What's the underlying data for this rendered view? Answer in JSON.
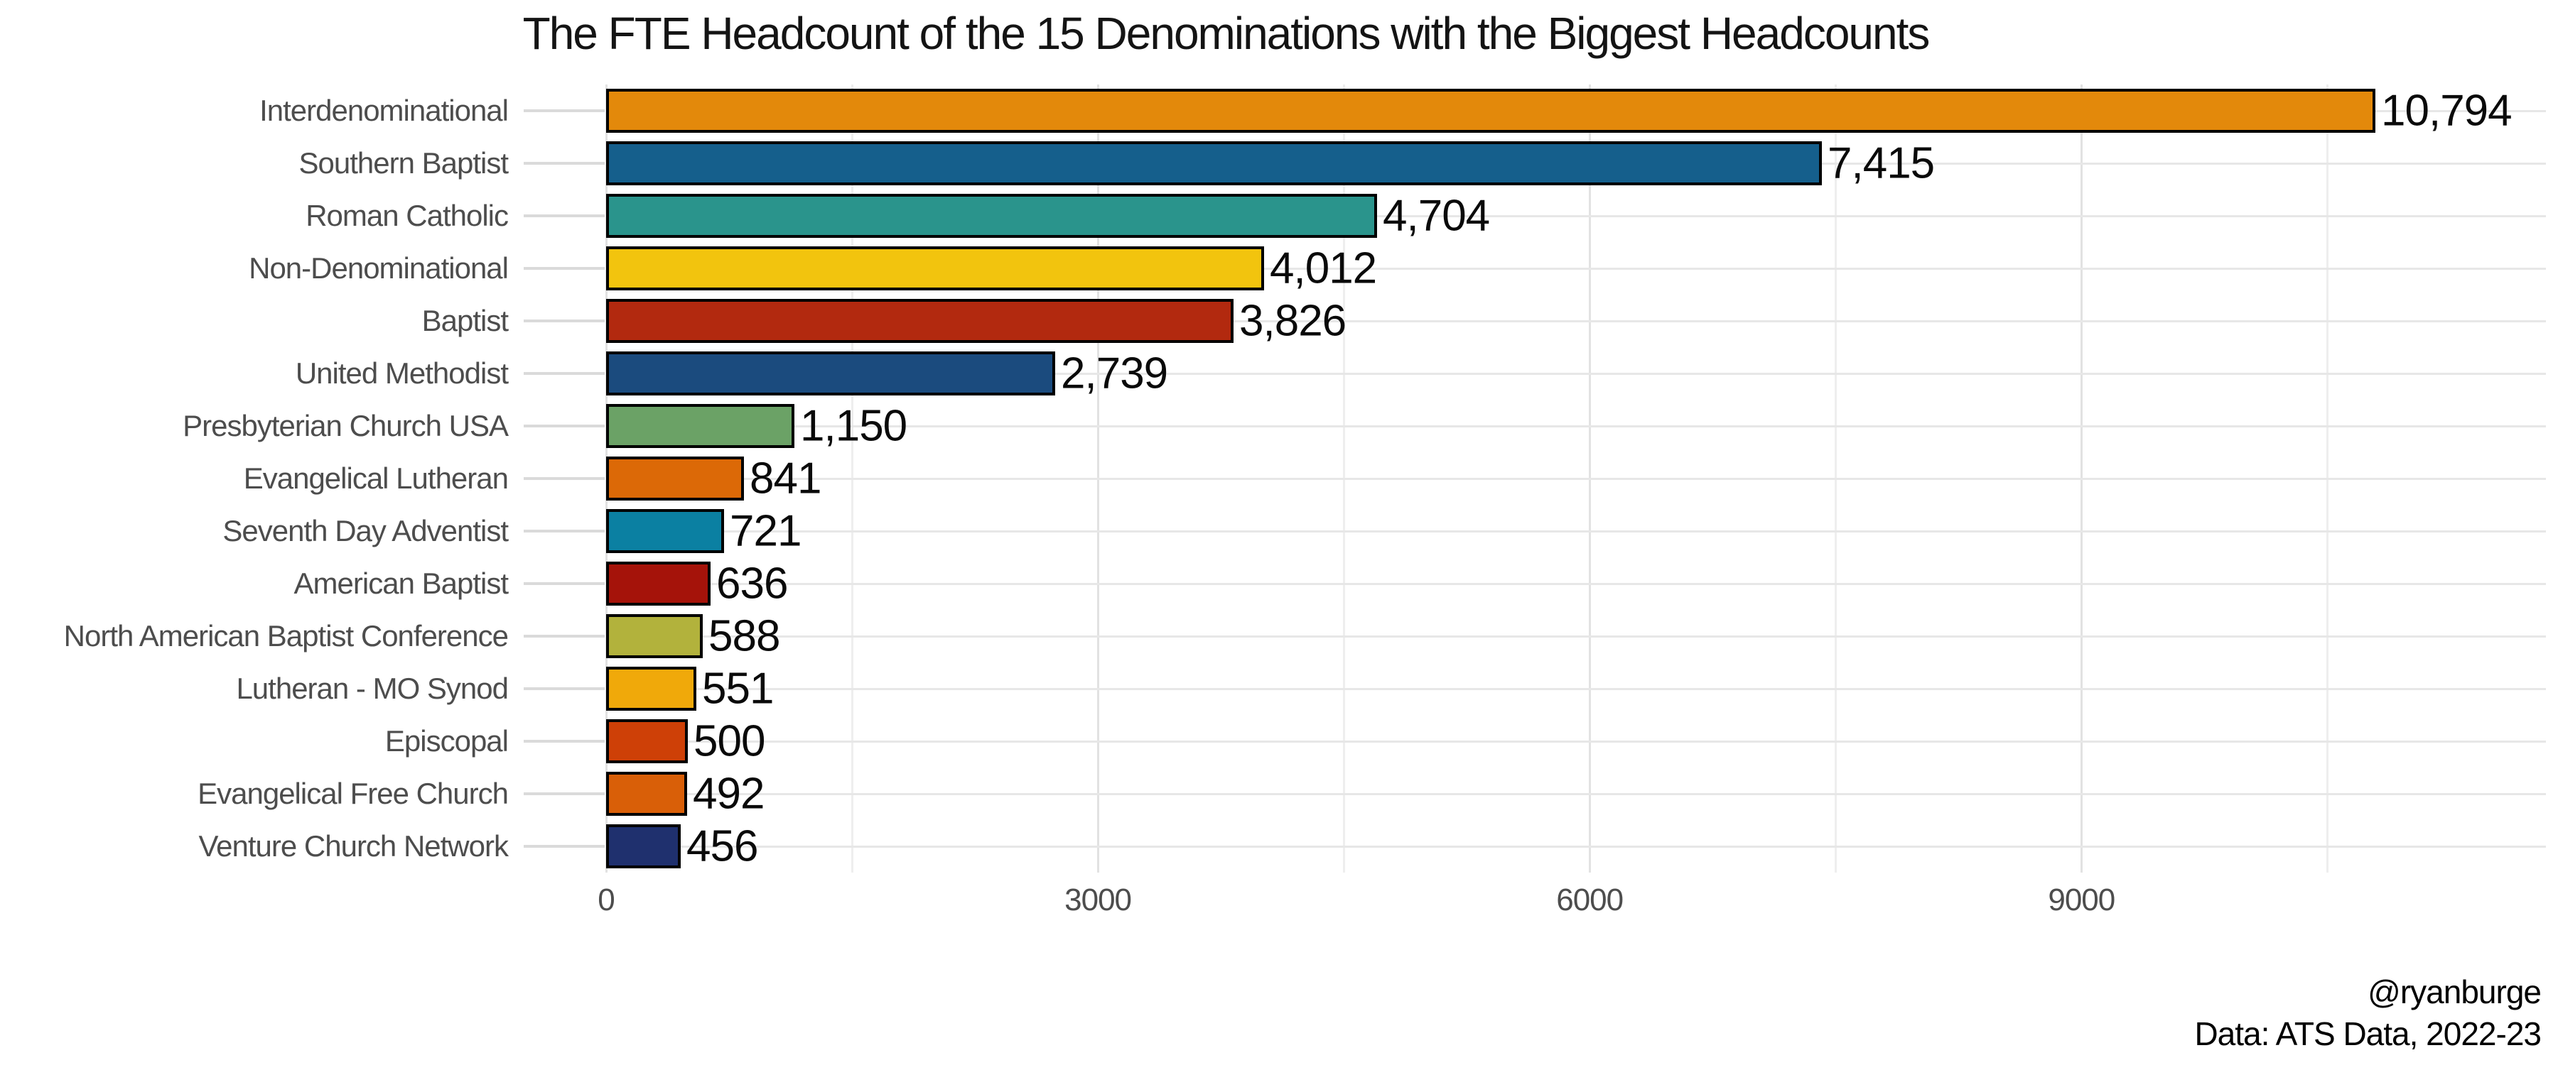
{
  "chart_data": {
    "type": "bar",
    "orientation": "horizontal",
    "title": "The FTE Headcount of the 15 Denominations with the Biggest Headcounts",
    "categories": [
      "Interdenominational",
      "Southern Baptist",
      "Roman Catholic",
      "Non-Denominational",
      "Baptist",
      "United Methodist",
      "Presbyterian Church USA",
      "Evangelical Lutheran",
      "Seventh Day Adventist",
      "American Baptist",
      "North American Baptist Conference",
      "Lutheran - MO Synod",
      "Episcopal",
      "Evangelical Free Church",
      "Venture Church Network"
    ],
    "values": [
      10794,
      7415,
      4704,
      4012,
      3826,
      2739,
      1150,
      841,
      721,
      636,
      588,
      551,
      500,
      492,
      456
    ],
    "value_labels": [
      "10,794",
      "7,415",
      "4,704",
      "4,012",
      "3,826",
      "2,739",
      "1,150",
      "841",
      "721",
      "636",
      "588",
      "551",
      "500",
      "492",
      "456"
    ],
    "bar_colors": [
      "#e3890b",
      "#155f8c",
      "#2a948c",
      "#f2c40e",
      "#b2290f",
      "#1b4b7e",
      "#6ba266",
      "#dc6907",
      "#0b80a2",
      "#a5130a",
      "#b2b23c",
      "#f0a90a",
      "#ce4007",
      "#d95f08",
      "#1f306e"
    ],
    "bar_border_color": "#000000",
    "x_axis": {
      "tick_labels": [
        "0",
        "3000",
        "6000",
        "9000"
      ],
      "tick_values": [
        0,
        3000,
        6000,
        9000
      ],
      "minor_gridlines": [
        1500,
        4500,
        7500,
        10500
      ],
      "max": 11800
    },
    "ylabel": "",
    "xlabel": "",
    "legend": "none",
    "grid": "vertical major+minor, horizontal per category",
    "background": "#ffffff",
    "text_color_axis": "#4d4d4d"
  },
  "caption": {
    "handle": "@ryanburge",
    "source": "Data: ATS Data, 2022-23"
  }
}
